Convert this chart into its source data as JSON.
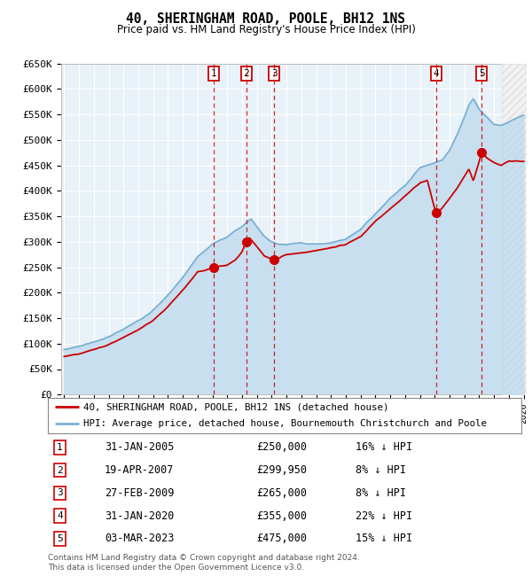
{
  "title": "40, SHERINGHAM ROAD, POOLE, BH12 1NS",
  "subtitle": "Price paid vs. HM Land Registry's House Price Index (HPI)",
  "ytick_values": [
    0,
    50000,
    100000,
    150000,
    200000,
    250000,
    300000,
    350000,
    400000,
    450000,
    500000,
    550000,
    600000,
    650000
  ],
  "ylabel_ticks": [
    "£0",
    "£50K",
    "£100K",
    "£150K",
    "£200K",
    "£250K",
    "£300K",
    "£350K",
    "£400K",
    "£450K",
    "£500K",
    "£550K",
    "£600K",
    "£650K"
  ],
  "ylim": [
    0,
    650000
  ],
  "transactions": [
    {
      "num": 1,
      "date": "31-JAN-2005",
      "date_val": 2005.08,
      "price": 250000,
      "pct": "16%"
    },
    {
      "num": 2,
      "date": "19-APR-2007",
      "date_val": 2007.29,
      "price": 299950,
      "pct": "8%"
    },
    {
      "num": 3,
      "date": "27-FEB-2009",
      "date_val": 2009.16,
      "price": 265000,
      "pct": "8%"
    },
    {
      "num": 4,
      "date": "31-JAN-2020",
      "date_val": 2020.08,
      "price": 355000,
      "pct": "22%"
    },
    {
      "num": 5,
      "date": "03-MAR-2023",
      "date_val": 2023.17,
      "price": 475000,
      "pct": "15%"
    }
  ],
  "legend_line1": "40, SHERINGHAM ROAD, POOLE, BH12 1NS (detached house)",
  "legend_line2": "HPI: Average price, detached house, Bournemouth Christchurch and Poole",
  "footer1": "Contains HM Land Registry data © Crown copyright and database right 2024.",
  "footer2": "This data is licensed under the Open Government Licence v3.0.",
  "hpi_color": "#7ab0d4",
  "hpi_fill": "#c8dff0",
  "price_color": "#cc0000",
  "vline_color": "#cc0000",
  "plot_bg": "#e8f2f8",
  "grid_color": "#ffffff",
  "hatch_start": 2024.5,
  "xlim_start": 1994.8,
  "xlim_end": 2026.2
}
